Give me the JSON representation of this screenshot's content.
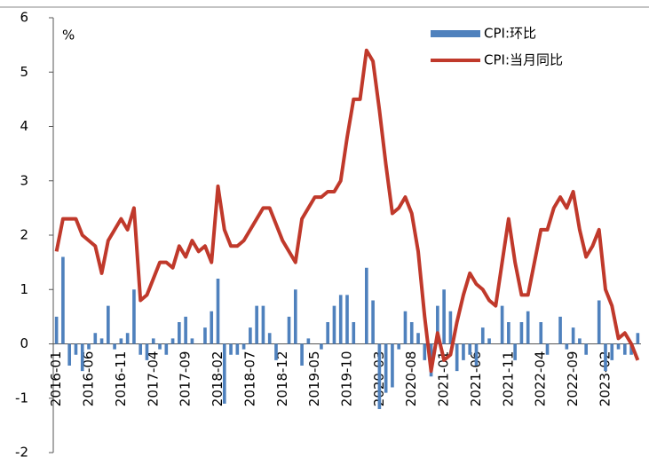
{
  "chart_data": {
    "type": "bar",
    "y_label": "%",
    "categories": [
      "2016-01",
      null,
      null,
      null,
      null,
      "2016-06",
      null,
      null,
      null,
      null,
      "2016-11",
      null,
      null,
      null,
      null,
      "2017-04",
      null,
      null,
      null,
      null,
      "2017-09",
      null,
      null,
      null,
      null,
      "2018-02",
      null,
      null,
      null,
      null,
      "2018-07",
      null,
      null,
      null,
      null,
      "2018-12",
      null,
      null,
      null,
      null,
      "2019-05",
      null,
      null,
      null,
      null,
      "2019-10",
      null,
      null,
      null,
      null,
      "2020-03",
      null,
      null,
      null,
      null,
      "2020-08",
      null,
      null,
      null,
      null,
      "2021-01",
      null,
      null,
      null,
      null,
      "2021-06",
      null,
      null,
      null,
      null,
      "2021-11",
      null,
      null,
      null,
      null,
      "2022-04",
      null,
      null,
      null,
      null,
      "2022-09",
      null,
      null,
      null,
      null,
      "2023-02",
      null,
      null,
      null,
      null,
      null
    ],
    "series": [
      {
        "name": "CPI:环比",
        "type": "bar",
        "color": "#4f81bd",
        "values": [
          0.5,
          1.6,
          -0.4,
          -0.2,
          -0.5,
          -0.1,
          0.2,
          0.1,
          0.7,
          -0.1,
          0.1,
          0.2,
          1.0,
          -0.2,
          -0.3,
          0.1,
          -0.1,
          -0.2,
          0.1,
          0.4,
          0.5,
          0.1,
          0.0,
          0.3,
          0.6,
          1.2,
          -1.1,
          -0.2,
          -0.2,
          -0.1,
          0.3,
          0.7,
          0.7,
          0.2,
          -0.3,
          0.0,
          0.5,
          1.0,
          -0.4,
          0.1,
          0.0,
          -0.1,
          0.4,
          0.7,
          0.9,
          0.9,
          0.4,
          0.0,
          1.4,
          0.8,
          -1.2,
          -0.9,
          -0.8,
          -0.1,
          0.6,
          0.4,
          0.2,
          -0.3,
          -0.6,
          0.7,
          1.0,
          0.6,
          -0.5,
          -0.3,
          -0.2,
          -0.4,
          0.3,
          0.1,
          0.0,
          0.7,
          0.4,
          -0.3,
          0.4,
          0.6,
          0.0,
          0.4,
          -0.2,
          0.0,
          0.5,
          -0.1,
          0.3,
          0.1,
          -0.2,
          0.0,
          0.8,
          -0.5,
          -0.3,
          -0.1,
          -0.2,
          -0.2,
          0.2
        ]
      },
      {
        "name": "CPI:当月同比",
        "type": "line",
        "color": "#c0392b",
        "values": [
          1.7,
          2.3,
          2.3,
          2.3,
          2.0,
          1.9,
          1.8,
          1.3,
          1.9,
          2.1,
          2.3,
          2.1,
          2.5,
          0.8,
          0.9,
          1.2,
          1.5,
          1.5,
          1.4,
          1.8,
          1.6,
          1.9,
          1.7,
          1.8,
          1.5,
          2.9,
          2.1,
          1.8,
          1.8,
          1.9,
          2.1,
          2.3,
          2.5,
          2.5,
          2.2,
          1.9,
          1.7,
          1.5,
          2.3,
          2.5,
          2.7,
          2.7,
          2.8,
          2.8,
          3.0,
          3.8,
          4.5,
          4.5,
          5.4,
          5.2,
          4.3,
          3.3,
          2.4,
          2.5,
          2.7,
          2.4,
          1.7,
          0.5,
          -0.5,
          0.2,
          -0.3,
          -0.2,
          0.4,
          0.9,
          1.3,
          1.1,
          1.0,
          0.8,
          0.7,
          1.5,
          2.3,
          1.5,
          0.9,
          0.9,
          1.5,
          2.1,
          2.1,
          2.5,
          2.7,
          2.5,
          2.8,
          2.1,
          1.6,
          1.8,
          2.1,
          1.0,
          0.7,
          0.1,
          0.2,
          0.0,
          -0.3
        ]
      }
    ],
    "ylim": [
      -2,
      6
    ],
    "yticks": [
      -2,
      -1,
      0,
      1,
      2,
      3,
      4,
      5,
      6
    ],
    "grid": false
  }
}
